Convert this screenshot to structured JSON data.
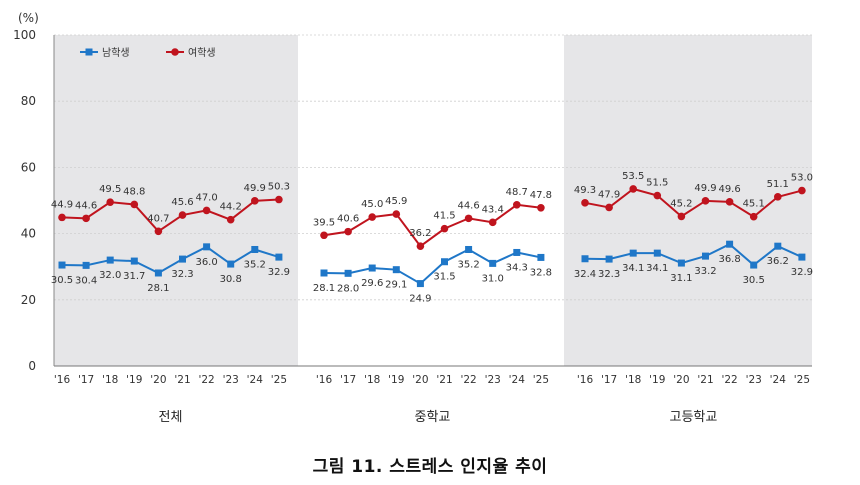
{
  "caption": "그림 11. 스트레스 인지율 추이",
  "chart_data": {
    "type": "line",
    "unit": "(%)",
    "ylim": [
      0,
      100
    ],
    "yticks": [
      "0",
      "20",
      "40",
      "60",
      "80",
      "100"
    ],
    "grid": true,
    "legend_position": "top-left",
    "colors": {
      "남학생": "#1f77c8",
      "여학생": "#c0141e",
      "panel_shade": "#e6e6e8"
    },
    "categories": [
      "'16",
      "'17",
      "'18",
      "'19",
      "'20",
      "'21",
      "'22",
      "'23",
      "'24",
      "'25"
    ],
    "panels": [
      {
        "name": "전체",
        "series": [
          {
            "name": "남학생",
            "values": [
              30.5,
              30.4,
              32.0,
              31.7,
              28.1,
              32.3,
              36.0,
              30.8,
              35.2,
              32.9
            ]
          },
          {
            "name": "여학생",
            "values": [
              44.9,
              44.6,
              49.5,
              48.8,
              40.7,
              45.6,
              47.0,
              44.2,
              49.9,
              50.3
            ]
          }
        ]
      },
      {
        "name": "중학교",
        "series": [
          {
            "name": "남학생",
            "values": [
              28.1,
              28.0,
              29.6,
              29.1,
              24.9,
              31.5,
              35.2,
              31.0,
              34.3,
              32.8
            ]
          },
          {
            "name": "여학생",
            "values": [
              39.5,
              40.6,
              45.0,
              45.9,
              36.2,
              41.5,
              44.6,
              43.4,
              48.7,
              47.8
            ]
          }
        ]
      },
      {
        "name": "고등학교",
        "series": [
          {
            "name": "남학생",
            "values": [
              32.4,
              32.3,
              34.1,
              34.1,
              31.1,
              33.2,
              36.8,
              30.5,
              36.2,
              32.9
            ]
          },
          {
            "name": "여학생",
            "values": [
              49.3,
              47.9,
              53.5,
              51.5,
              45.2,
              49.9,
              49.6,
              45.1,
              51.1,
              53.0
            ]
          }
        ]
      }
    ]
  }
}
